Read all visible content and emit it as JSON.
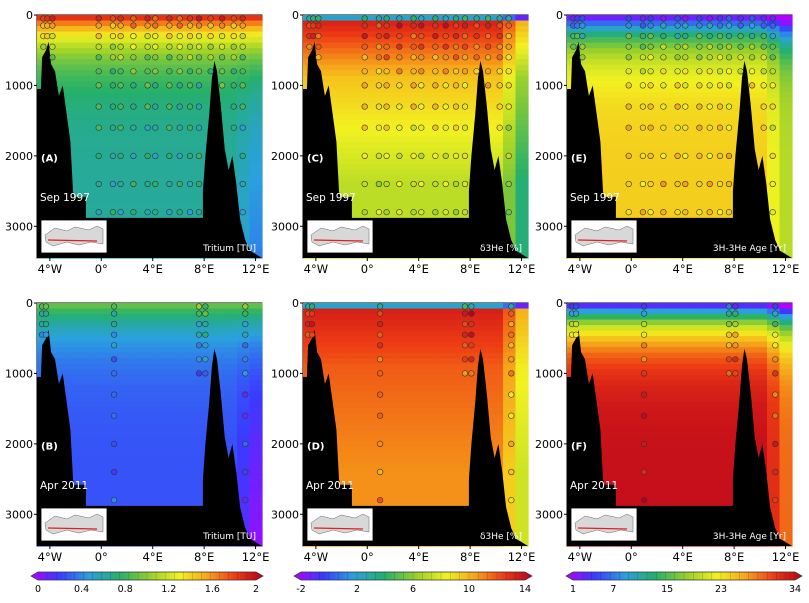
{
  "figure": {
    "panels": [
      {
        "id": "A",
        "label": "(A)",
        "date": "Sep 1997",
        "variable": "Tritium [TU]",
        "scale": "tritium"
      },
      {
        "id": "C",
        "label": "(C)",
        "date": "Sep 1997",
        "variable": "δ3He [%]",
        "scale": "dhe"
      },
      {
        "id": "E",
        "label": "(E)",
        "date": "Sep 1997",
        "variable": "3H-3He Age [Yr]",
        "scale": "age"
      },
      {
        "id": "B",
        "label": "(B)",
        "date": "Apr 2011",
        "variable": "Tritium [TU]",
        "scale": "tritium"
      },
      {
        "id": "D",
        "label": "(D)",
        "date": "Apr 2011",
        "variable": "δ3He [%]",
        "scale": "dhe"
      },
      {
        "id": "F",
        "label": "(F)",
        "date": "Apr 2011",
        "variable": "3H-3He Age [Yr]",
        "scale": "age"
      }
    ],
    "colorbars": [
      {
        "id": "tritium",
        "ticks": [
          "0",
          "0.4",
          "0.8",
          "1.2",
          "1.6",
          "2"
        ]
      },
      {
        "id": "dhe",
        "ticks": [
          "-2",
          "2",
          "6",
          "10",
          "14"
        ]
      },
      {
        "id": "age",
        "ticks": [
          "1",
          "7",
          "15",
          "23",
          "34"
        ]
      }
    ],
    "colors": {
      "land": "#000000",
      "low": "#8a2be2",
      "mid": "#22a84b",
      "high": "#c8001a"
    }
  },
  "chart_data": {
    "type": "heatmap",
    "description_of_axes": "depth sections along a zonal transect",
    "x_ticks": [
      "4°W",
      "0°",
      "4°E",
      "8°E",
      "12°E"
    ],
    "x_values_deg": [
      -4,
      0,
      4,
      8,
      12
    ],
    "x_range_deg": [
      -5,
      12.5
    ],
    "y_ticks": [
      "0",
      "1000",
      "2000",
      "3000"
    ],
    "y_values_m": [
      0,
      1000,
      2000,
      3000
    ],
    "y_range_m": [
      0,
      3450
    ],
    "y_reversed": true,
    "panels": [
      {
        "label": "(A)",
        "date": "Sep 1997",
        "variable": "Tritium [TU]",
        "surface_value": 1.9,
        "deep_value": 0.65
      },
      {
        "label": "(C)",
        "date": "Sep 1997",
        "variable": "δ3He [%]",
        "surface_value": 0,
        "subsurface_max": 13,
        "deep_value": 7
      },
      {
        "label": "(E)",
        "date": "Sep 1997",
        "variable": "3H-3He Age [Yr]",
        "surface_value": 1,
        "deep_value": 24
      },
      {
        "label": "(B)",
        "date": "Apr 2011",
        "variable": "Tritium [TU]",
        "surface_value": 0.95,
        "deep_value": 0.3
      },
      {
        "label": "(D)",
        "date": "Apr 2011",
        "variable": "δ3He [%]",
        "surface_value": 0,
        "subsurface_max": 13,
        "deep_value": 10.5
      },
      {
        "label": "(F)",
        "date": "Apr 2011",
        "variable": "3H-3He Age [Yr]",
        "surface_value": 1,
        "deep_value": 33
      }
    ],
    "colorbar_ranges": {
      "tritium": [
        0,
        2
      ],
      "dhe": [
        -2,
        14
      ],
      "age": [
        1,
        34
      ]
    }
  }
}
